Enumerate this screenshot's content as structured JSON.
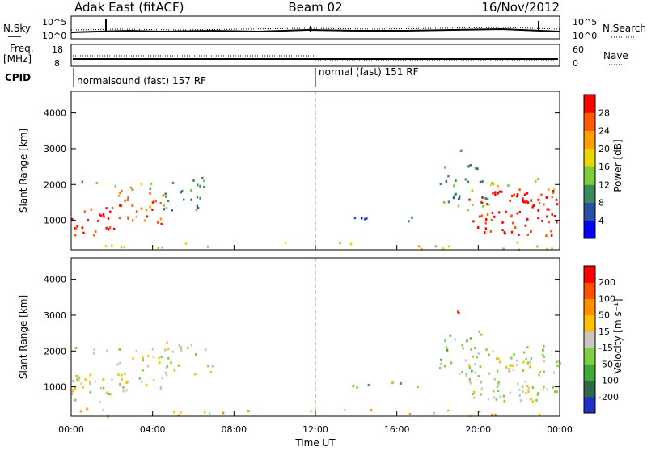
{
  "header": {
    "station": "Adak East (fitACF)",
    "beam": "Beam 02",
    "date": "16/Nov/2012"
  },
  "top_panels": {
    "nsky_label": "N.Sky",
    "nsearch_label": "N.Search",
    "nsky_ticks": [
      "10^5",
      "10^0"
    ],
    "nsearch_ticks": [
      "10^5",
      "10^0"
    ],
    "freq_label_1": "Freq.",
    "freq_label_2": "[MHz]",
    "freq_ticks": [
      "18",
      "8"
    ],
    "nave_label": "Nave",
    "nave_ticks": [
      "60",
      "0"
    ],
    "cpid_label": "CPID",
    "cpid_segments": [
      {
        "label": "normalsound (fast) 157 RF",
        "start_hour": 0,
        "end_hour": 12
      },
      {
        "label": "normal (fast) 151 RF",
        "start_hour": 12,
        "end_hour": 24
      }
    ]
  },
  "chart_data": [
    {
      "type": "heatmap",
      "name": "power",
      "ylabel": "Slant Range [km]",
      "xlabel": "Time UT",
      "xlim": [
        0,
        24
      ],
      "ylim": [
        180,
        4600
      ],
      "y_ticks": [
        1000,
        2000,
        3000,
        4000
      ],
      "x_tick_labels": [
        "00:00",
        "04:00",
        "08:00",
        "12:00",
        "16:00",
        "20:00",
        "00:00"
      ],
      "colorbar_label": "Power [dB]",
      "colorbar_ticks": [
        "28",
        "24",
        "20",
        "16",
        "12",
        "8",
        "4"
      ],
      "colors": [
        "#0000ff",
        "#2b4fa3",
        "#3c8a5a",
        "#7ccc3c",
        "#e8d800",
        "#ffa000",
        "#ff5a00",
        "#ff0000"
      ]
    },
    {
      "type": "heatmap",
      "name": "velocity",
      "ylabel": "Slant Range [km]",
      "xlabel": "Time UT",
      "xlim": [
        0,
        24
      ],
      "ylim": [
        180,
        4600
      ],
      "y_ticks": [
        1000,
        2000,
        3000,
        4000
      ],
      "x_tick_labels": [
        "00:00",
        "04:00",
        "08:00",
        "12:00",
        "16:00",
        "20:00",
        "00:00"
      ],
      "colorbar_label": "Velocity [m s⁻¹]",
      "colorbar_ticks": [
        "200",
        "100",
        "50",
        "15",
        "-15",
        "-50",
        "-100",
        "-200"
      ],
      "colors": [
        "#1f2fc8",
        "#2f6a48",
        "#3fa838",
        "#7fd040",
        "#c8c8c0",
        "#ffc000",
        "#ff9000",
        "#ff5000",
        "#ff0000"
      ]
    }
  ]
}
